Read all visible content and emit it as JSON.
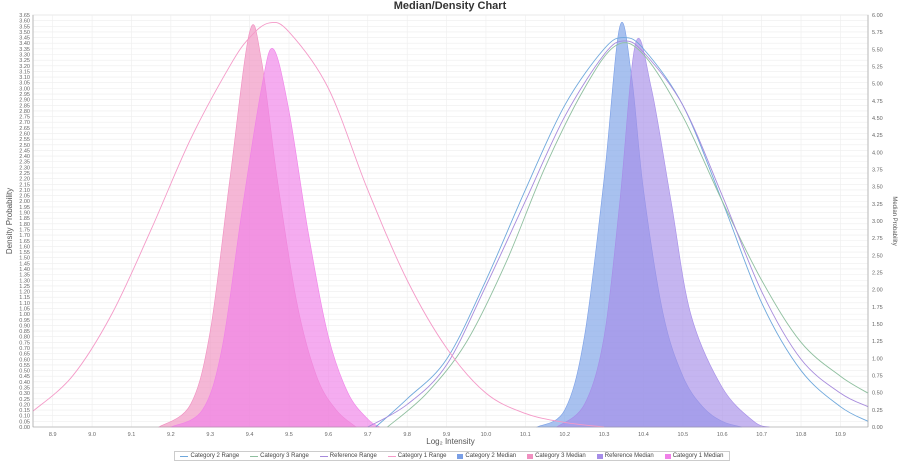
{
  "chart_data": {
    "type": "area",
    "title": "Median/Density Chart",
    "xlabel": "Log₂ Intensity",
    "ylabel": "Density Probability",
    "y2label": "Median Probability",
    "xlim": [
      8.85,
      10.97
    ],
    "ylim": [
      0,
      3.65
    ],
    "y2lim": [
      0,
      6.0
    ],
    "x_ticks": [
      "8.9",
      "9.0",
      "9.1",
      "9.2",
      "9.3",
      "9.4",
      "9.5",
      "9.6",
      "9.7",
      "9.8",
      "9.9",
      "10.0",
      "10.1",
      "10.2",
      "10.3",
      "10.4",
      "10.5",
      "10.6",
      "10.7",
      "10.8",
      "10.9"
    ],
    "y_ticks": [
      "0.00",
      "0.05",
      "0.10",
      "0.15",
      "0.20",
      "0.25",
      "0.30",
      "0.35",
      "0.40",
      "0.45",
      "0.50",
      "0.55",
      "0.60",
      "0.65",
      "0.70",
      "0.75",
      "0.80",
      "0.85",
      "0.90",
      "0.95",
      "1.00",
      "1.05",
      "1.10",
      "1.15",
      "1.20",
      "1.25",
      "1.30",
      "1.35",
      "1.40",
      "1.45",
      "1.50",
      "1.55",
      "1.60",
      "1.65",
      "1.70",
      "1.75",
      "1.80",
      "1.85",
      "1.90",
      "1.95",
      "2.00",
      "2.05",
      "2.10",
      "2.15",
      "2.20",
      "2.25",
      "2.30",
      "2.35",
      "2.40",
      "2.45",
      "2.50",
      "2.55",
      "2.60",
      "2.65",
      "2.70",
      "2.75",
      "2.80",
      "2.85",
      "2.90",
      "2.95",
      "3.00",
      "3.05",
      "3.10",
      "3.15",
      "3.20",
      "3.25",
      "3.30",
      "3.35",
      "3.40",
      "3.45",
      "3.50",
      "3.55",
      "3.60",
      "3.65"
    ],
    "y2_ticks": [
      "0.00",
      "0.25",
      "0.50",
      "0.75",
      "1.00",
      "1.25",
      "1.50",
      "1.75",
      "2.00",
      "2.25",
      "2.50",
      "2.75",
      "3.00",
      "3.25",
      "3.50",
      "3.75",
      "4.00",
      "4.25",
      "4.50",
      "4.75",
      "5.00",
      "5.25",
      "5.50",
      "5.75",
      "6.00"
    ],
    "legend_position": "bottom",
    "grid": true,
    "series": [
      {
        "name": "Category 2 Range",
        "kind": "range-line",
        "color": "#6fa8dc",
        "points": [
          [
            9.72,
            0.0
          ],
          [
            9.8,
            0.25
          ],
          [
            9.9,
            0.6
          ],
          [
            10.0,
            1.3
          ],
          [
            10.1,
            2.1
          ],
          [
            10.2,
            2.85
          ],
          [
            10.3,
            3.35
          ],
          [
            10.35,
            3.45
          ],
          [
            10.4,
            3.35
          ],
          [
            10.5,
            2.85
          ],
          [
            10.6,
            2.0
          ],
          [
            10.7,
            1.1
          ],
          [
            10.8,
            0.5
          ],
          [
            10.9,
            0.18
          ],
          [
            10.97,
            0.05
          ]
        ]
      },
      {
        "name": "Category 3 Range",
        "kind": "range-line",
        "color": "#8fbf9f",
        "points": [
          [
            9.75,
            0.0
          ],
          [
            9.85,
            0.3
          ],
          [
            9.95,
            0.75
          ],
          [
            10.05,
            1.45
          ],
          [
            10.15,
            2.3
          ],
          [
            10.25,
            3.0
          ],
          [
            10.33,
            3.38
          ],
          [
            10.4,
            3.3
          ],
          [
            10.5,
            2.75
          ],
          [
            10.6,
            2.0
          ],
          [
            10.7,
            1.3
          ],
          [
            10.8,
            0.75
          ],
          [
            10.9,
            0.45
          ],
          [
            10.97,
            0.3
          ]
        ]
      },
      {
        "name": "Reference Range",
        "kind": "range-line",
        "color": "#a78bdc",
        "points": [
          [
            9.7,
            0.0
          ],
          [
            9.8,
            0.2
          ],
          [
            9.9,
            0.55
          ],
          [
            10.0,
            1.25
          ],
          [
            10.1,
            2.0
          ],
          [
            10.2,
            2.75
          ],
          [
            10.3,
            3.3
          ],
          [
            10.35,
            3.42
          ],
          [
            10.4,
            3.32
          ],
          [
            10.5,
            2.85
          ],
          [
            10.6,
            2.05
          ],
          [
            10.7,
            1.2
          ],
          [
            10.8,
            0.6
          ],
          [
            10.9,
            0.3
          ],
          [
            10.97,
            0.18
          ]
        ]
      },
      {
        "name": "Category 1 Range",
        "kind": "range-line",
        "color": "#f49ac8",
        "points": [
          [
            8.85,
            0.14
          ],
          [
            8.95,
            0.45
          ],
          [
            9.05,
            1.0
          ],
          [
            9.15,
            1.75
          ],
          [
            9.25,
            2.55
          ],
          [
            9.35,
            3.2
          ],
          [
            9.4,
            3.45
          ],
          [
            9.45,
            3.58
          ],
          [
            9.5,
            3.5
          ],
          [
            9.6,
            3.0
          ],
          [
            9.7,
            2.1
          ],
          [
            9.8,
            1.3
          ],
          [
            9.9,
            0.7
          ],
          [
            10.0,
            0.3
          ],
          [
            10.1,
            0.12
          ],
          [
            10.2,
            0.04
          ],
          [
            10.3,
            0.0
          ]
        ]
      },
      {
        "name": "Category 2 Median",
        "kind": "median-area",
        "color": "#7a9fe6",
        "points": [
          [
            10.13,
            0.0
          ],
          [
            10.2,
            0.15
          ],
          [
            10.25,
            0.8
          ],
          [
            10.3,
            2.2
          ],
          [
            10.34,
            3.55
          ],
          [
            10.37,
            3.1
          ],
          [
            10.4,
            2.1
          ],
          [
            10.45,
            1.0
          ],
          [
            10.5,
            0.45
          ],
          [
            10.55,
            0.18
          ],
          [
            10.6,
            0.05
          ],
          [
            10.65,
            0.0
          ]
        ]
      },
      {
        "name": "Category 3 Median",
        "kind": "median-area",
        "color": "#f090c0",
        "points": [
          [
            9.17,
            0.0
          ],
          [
            9.25,
            0.2
          ],
          [
            9.3,
            0.85
          ],
          [
            9.35,
            2.2
          ],
          [
            9.4,
            3.5
          ],
          [
            9.43,
            3.25
          ],
          [
            9.47,
            2.2
          ],
          [
            9.52,
            1.1
          ],
          [
            9.57,
            0.45
          ],
          [
            9.62,
            0.15
          ],
          [
            9.67,
            0.0
          ]
        ]
      },
      {
        "name": "Reference Median",
        "kind": "median-area",
        "color": "#a68de8",
        "points": [
          [
            10.18,
            0.0
          ],
          [
            10.25,
            0.2
          ],
          [
            10.3,
            0.8
          ],
          [
            10.34,
            2.0
          ],
          [
            10.38,
            3.4
          ],
          [
            10.42,
            3.0
          ],
          [
            10.47,
            2.0
          ],
          [
            10.52,
            1.0
          ],
          [
            10.6,
            0.35
          ],
          [
            10.68,
            0.05
          ],
          [
            10.72,
            0.0
          ]
        ]
      },
      {
        "name": "Category 1 Median",
        "kind": "median-area",
        "color": "#f080e8",
        "points": [
          [
            9.2,
            0.0
          ],
          [
            9.28,
            0.15
          ],
          [
            9.33,
            0.7
          ],
          [
            9.38,
            1.9
          ],
          [
            9.43,
            3.0
          ],
          [
            9.46,
            3.35
          ],
          [
            9.5,
            2.8
          ],
          [
            9.55,
            1.7
          ],
          [
            9.6,
            0.8
          ],
          [
            9.65,
            0.3
          ],
          [
            9.7,
            0.07
          ],
          [
            9.73,
            0.0
          ]
        ]
      }
    ]
  }
}
